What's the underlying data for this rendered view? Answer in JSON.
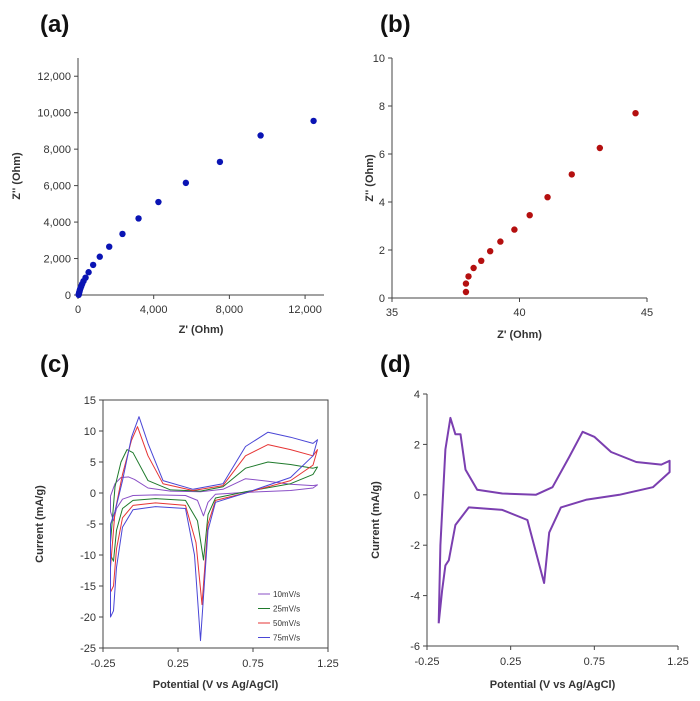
{
  "chart_data": [
    {
      "panel": "(a)",
      "type": "scatter",
      "xlabel": "Z' (Ohm)",
      "ylabel": "Z'' (Ohm)",
      "xlim": [
        0,
        13000
      ],
      "ylim": [
        0,
        13000
      ],
      "xticks": [
        0,
        4000,
        8000,
        12000
      ],
      "xtick_labels": [
        "0",
        "4,000",
        "8,000",
        "12,000"
      ],
      "yticks": [
        0,
        2000,
        4000,
        6000,
        8000,
        10000,
        12000
      ],
      "ytick_labels": [
        "0",
        "2,000",
        "4,000",
        "6,000",
        "8,000",
        "10,000",
        "12,000"
      ],
      "color": "#0a14b4",
      "points": [
        [
          35,
          10
        ],
        [
          45,
          60
        ],
        [
          60,
          120
        ],
        [
          80,
          200
        ],
        [
          100,
          280
        ],
        [
          130,
          370
        ],
        [
          170,
          470
        ],
        [
          220,
          600
        ],
        [
          290,
          760
        ],
        [
          400,
          950
        ],
        [
          560,
          1250
        ],
        [
          800,
          1650
        ],
        [
          1150,
          2100
        ],
        [
          1650,
          2650
        ],
        [
          2350,
          3350
        ],
        [
          3200,
          4200
        ],
        [
          4250,
          5100
        ],
        [
          5700,
          6150
        ],
        [
          7500,
          7300
        ],
        [
          9650,
          8750
        ],
        [
          12450,
          9550
        ]
      ]
    },
    {
      "panel": "(b)",
      "type": "scatter",
      "xlabel": "Z' (Ohm)",
      "ylabel": "Z'' (Ohm)",
      "xlim": [
        35,
        45
      ],
      "ylim": [
        0,
        10
      ],
      "xticks": [
        35,
        40,
        45
      ],
      "xtick_labels": [
        "35",
        "40",
        "45"
      ],
      "yticks": [
        0,
        2,
        4,
        6,
        8,
        10
      ],
      "ytick_labels": [
        "0",
        "2",
        "4",
        "6",
        "8",
        "10"
      ],
      "color": "#b40f0f",
      "points": [
        [
          37.9,
          0.25
        ],
        [
          37.9,
          0.6
        ],
        [
          38.0,
          0.9
        ],
        [
          38.2,
          1.25
        ],
        [
          38.5,
          1.55
        ],
        [
          38.85,
          1.95
        ],
        [
          39.25,
          2.35
        ],
        [
          39.8,
          2.85
        ],
        [
          40.4,
          3.45
        ],
        [
          41.1,
          4.2
        ],
        [
          42.05,
          5.15
        ],
        [
          43.15,
          6.25
        ],
        [
          44.55,
          7.7
        ]
      ]
    },
    {
      "panel": "(c)",
      "type": "line",
      "xlabel": "Potential (V vs Ag/AgCl)",
      "ylabel": "Current (mA/g)",
      "xlim": [
        -0.25,
        1.25
      ],
      "ylim": [
        -25,
        15
      ],
      "xticks": [
        -0.25,
        0.25,
        0.75,
        1.25
      ],
      "xtick_labels": [
        "-0.25",
        "0.25",
        "0.75",
        "1.25"
      ],
      "yticks": [
        -25,
        -20,
        -15,
        -10,
        -5,
        0,
        5,
        10,
        15
      ],
      "ytick_labels": [
        "-25",
        "-20",
        "-15",
        "-10",
        "-5",
        "0",
        "5",
        "10",
        "15"
      ],
      "legend_position": "bottom-right",
      "series": [
        {
          "name": "10mV/s",
          "color": "#8a4fc6",
          "points": [
            [
              -0.2,
              -0.5
            ],
            [
              -0.17,
              1.5
            ],
            [
              -0.13,
              2.5
            ],
            [
              -0.08,
              2.6
            ],
            [
              -0.04,
              2.2
            ],
            [
              0.05,
              0.8
            ],
            [
              0.2,
              0.3
            ],
            [
              0.4,
              0.2
            ],
            [
              0.55,
              0.6
            ],
            [
              0.7,
              2.3
            ],
            [
              0.85,
              1.9
            ],
            [
              1.0,
              1.4
            ],
            [
              1.15,
              1.2
            ],
            [
              1.18,
              1.3
            ],
            [
              1.15,
              0.8
            ],
            [
              1.0,
              0.4
            ],
            [
              0.7,
              0.1
            ],
            [
              0.5,
              -0.2
            ],
            [
              0.45,
              -1.5
            ],
            [
              0.42,
              -3.7
            ],
            [
              0.38,
              -1.2
            ],
            [
              0.3,
              -0.4
            ],
            [
              0.1,
              -0.3
            ],
            [
              -0.05,
              -0.4
            ],
            [
              -0.12,
              -1.0
            ],
            [
              -0.16,
              -2.5
            ],
            [
              -0.18,
              -4.5
            ],
            [
              -0.2,
              -3.0
            ],
            [
              -0.2,
              -0.5
            ]
          ]
        },
        {
          "name": "25mV/s",
          "color": "#1f7a2c",
          "points": [
            [
              -0.2,
              -8.0
            ],
            [
              -0.17,
              1.0
            ],
            [
              -0.13,
              5.0
            ],
            [
              -0.09,
              7.0
            ],
            [
              -0.05,
              6.5
            ],
            [
              0.05,
              2.0
            ],
            [
              0.2,
              0.5
            ],
            [
              0.4,
              0.3
            ],
            [
              0.55,
              1.0
            ],
            [
              0.7,
              4.0
            ],
            [
              0.85,
              5.0
            ],
            [
              1.0,
              4.6
            ],
            [
              1.15,
              4.0
            ],
            [
              1.18,
              4.2
            ],
            [
              1.15,
              3.0
            ],
            [
              1.0,
              1.5
            ],
            [
              0.7,
              0.2
            ],
            [
              0.5,
              -0.8
            ],
            [
              0.45,
              -3.5
            ],
            [
              0.42,
              -10.8
            ],
            [
              0.38,
              -4.5
            ],
            [
              0.3,
              -1.2
            ],
            [
              0.1,
              -0.9
            ],
            [
              -0.05,
              -1.2
            ],
            [
              -0.12,
              -2.5
            ],
            [
              -0.16,
              -6.0
            ],
            [
              -0.18,
              -11.0
            ],
            [
              -0.2,
              -10.0
            ],
            [
              -0.2,
              -8.0
            ]
          ]
        },
        {
          "name": "50mV/s",
          "color": "#e63434",
          "points": [
            [
              -0.2,
              -12.0
            ],
            [
              -0.17,
              -3.0
            ],
            [
              -0.12,
              3.0
            ],
            [
              -0.06,
              8.5
            ],
            [
              -0.02,
              10.7
            ],
            [
              0.05,
              6.0
            ],
            [
              0.15,
              1.5
            ],
            [
              0.35,
              0.4
            ],
            [
              0.55,
              1.2
            ],
            [
              0.7,
              6.0
            ],
            [
              0.85,
              7.8
            ],
            [
              1.0,
              7.0
            ],
            [
              1.15,
              6.0
            ],
            [
              1.18,
              7.0
            ],
            [
              1.15,
              4.5
            ],
            [
              1.0,
              2.0
            ],
            [
              0.7,
              0.0
            ],
            [
              0.5,
              -1.2
            ],
            [
              0.45,
              -5.0
            ],
            [
              0.41,
              -18.0
            ],
            [
              0.37,
              -8.0
            ],
            [
              0.3,
              -2.0
            ],
            [
              0.1,
              -1.6
            ],
            [
              -0.05,
              -2.0
            ],
            [
              -0.12,
              -4.0
            ],
            [
              -0.16,
              -9.0
            ],
            [
              -0.18,
              -15.0
            ],
            [
              -0.2,
              -16.0
            ],
            [
              -0.2,
              -12.0
            ]
          ]
        },
        {
          "name": "75mV/s",
          "color": "#4a46d6",
          "points": [
            [
              -0.2,
              -5.0
            ],
            [
              -0.17,
              -3.0
            ],
            [
              -0.12,
              2.0
            ],
            [
              -0.06,
              9.0
            ],
            [
              -0.01,
              12.3
            ],
            [
              0.05,
              8.0
            ],
            [
              0.15,
              2.0
            ],
            [
              0.35,
              0.6
            ],
            [
              0.55,
              1.5
            ],
            [
              0.7,
              7.5
            ],
            [
              0.85,
              9.8
            ],
            [
              1.0,
              9.0
            ],
            [
              1.15,
              8.0
            ],
            [
              1.18,
              8.6
            ],
            [
              1.15,
              6.0
            ],
            [
              1.0,
              2.5
            ],
            [
              0.7,
              0.0
            ],
            [
              0.5,
              -1.5
            ],
            [
              0.45,
              -6.0
            ],
            [
              0.4,
              -23.8
            ],
            [
              0.36,
              -10.0
            ],
            [
              0.3,
              -2.5
            ],
            [
              0.1,
              -2.2
            ],
            [
              -0.05,
              -2.7
            ],
            [
              -0.12,
              -5.5
            ],
            [
              -0.16,
              -12.0
            ],
            [
              -0.18,
              -19.0
            ],
            [
              -0.2,
              -20.0
            ],
            [
              -0.2,
              -5.0
            ]
          ]
        }
      ]
    },
    {
      "panel": "(d)",
      "type": "line",
      "xlabel": "Potential (V vs Ag/AgCl)",
      "ylabel": "Current (mA/g)",
      "xlim": [
        -0.25,
        1.25
      ],
      "ylim": [
        -6,
        4
      ],
      "xticks": [
        -0.25,
        0.25,
        0.75,
        1.25
      ],
      "xtick_labels": [
        "-0.25",
        "0.25",
        "0.75",
        "1.25"
      ],
      "yticks": [
        -6,
        -4,
        -2,
        0,
        2,
        4
      ],
      "ytick_labels": [
        "-6",
        "-4",
        "-2",
        "0",
        "2",
        "4"
      ],
      "series": [
        {
          "color": "#7b3fb0",
          "points": [
            [
              -0.18,
              -5.1
            ],
            [
              -0.17,
              -2.0
            ],
            [
              -0.14,
              1.8
            ],
            [
              -0.11,
              3.05
            ],
            [
              -0.08,
              2.4
            ],
            [
              -0.05,
              2.4
            ],
            [
              -0.02,
              1.0
            ],
            [
              0.05,
              0.2
            ],
            [
              0.2,
              0.05
            ],
            [
              0.4,
              0.0
            ],
            [
              0.5,
              0.3
            ],
            [
              0.6,
              1.5
            ],
            [
              0.68,
              2.5
            ],
            [
              0.75,
              2.3
            ],
            [
              0.85,
              1.7
            ],
            [
              1.0,
              1.3
            ],
            [
              1.15,
              1.2
            ],
            [
              1.2,
              1.35
            ],
            [
              1.2,
              0.9
            ],
            [
              1.1,
              0.3
            ],
            [
              0.9,
              0.0
            ],
            [
              0.7,
              -0.2
            ],
            [
              0.55,
              -0.5
            ],
            [
              0.48,
              -1.5
            ],
            [
              0.45,
              -3.5
            ],
            [
              0.41,
              -2.5
            ],
            [
              0.35,
              -1.0
            ],
            [
              0.2,
              -0.6
            ],
            [
              0.0,
              -0.5
            ],
            [
              -0.08,
              -1.2
            ],
            [
              -0.12,
              -2.6
            ],
            [
              -0.14,
              -2.8
            ],
            [
              -0.16,
              -3.8
            ],
            [
              -0.18,
              -5.1
            ]
          ]
        }
      ]
    }
  ]
}
